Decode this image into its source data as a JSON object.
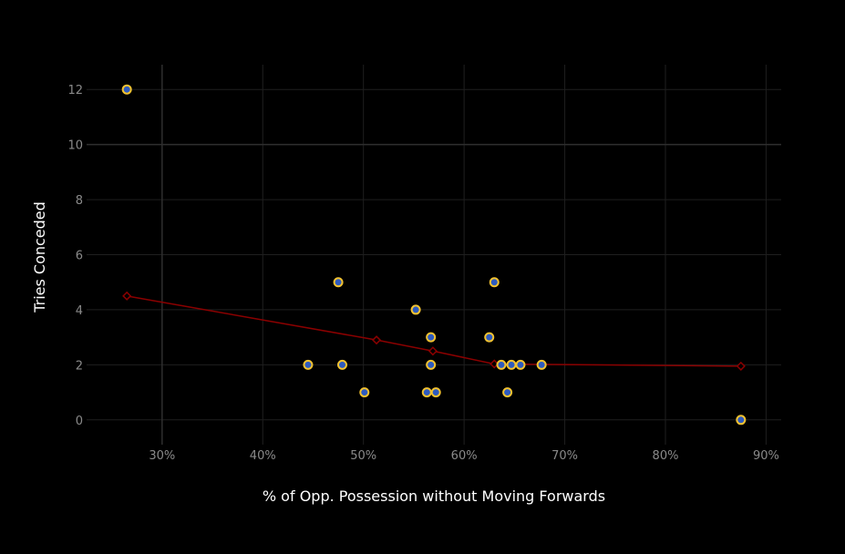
{
  "chart_data": {
    "type": "scatter",
    "title": "",
    "xlabel": "% of Opp. Possession without Moving Forwards",
    "ylabel": "Tries Conceded",
    "xlim": [
      0.225,
      0.915
    ],
    "ylim": [
      -0.9,
      12.9
    ],
    "x_ticks": [
      0.3,
      0.4,
      0.5,
      0.6,
      0.7,
      0.8,
      0.9
    ],
    "x_tick_labels": [
      "30%",
      "40%",
      "50%",
      "60%",
      "70%",
      "80%",
      "90%"
    ],
    "y_ticks": [
      0,
      2,
      4,
      6,
      8,
      10,
      12
    ],
    "y_tick_labels": [
      "0",
      "2",
      "4",
      "6",
      "8",
      "10",
      "12"
    ],
    "grid": true,
    "legend": "none",
    "colors": {
      "background": "#000000",
      "grid": "#1f1f1f",
      "zero_line": "#2e2e2e",
      "point_fill": "#2e5bbf",
      "point_stroke": "#f2c230",
      "trend": "#8b0000",
      "tick_text": "#8a8a8a",
      "axis_title": "#ffffff"
    },
    "series": [
      {
        "type": "scatter",
        "points": [
          {
            "x": 0.265,
            "y": 12
          },
          {
            "x": 0.445,
            "y": 2
          },
          {
            "x": 0.475,
            "y": 5
          },
          {
            "x": 0.479,
            "y": 2
          },
          {
            "x": 0.501,
            "y": 1
          },
          {
            "x": 0.552,
            "y": 4
          },
          {
            "x": 0.563,
            "y": 1
          },
          {
            "x": 0.567,
            "y": 3
          },
          {
            "x": 0.567,
            "y": 2
          },
          {
            "x": 0.572,
            "y": 1
          },
          {
            "x": 0.625,
            "y": 3
          },
          {
            "x": 0.63,
            "y": 5
          },
          {
            "x": 0.637,
            "y": 2
          },
          {
            "x": 0.643,
            "y": 1
          },
          {
            "x": 0.647,
            "y": 2
          },
          {
            "x": 0.656,
            "y": 2
          },
          {
            "x": 0.677,
            "y": 2
          },
          {
            "x": 0.875,
            "y": 0
          }
        ]
      },
      {
        "type": "line",
        "points": [
          {
            "x": 0.265,
            "y": 4.5
          },
          {
            "x": 0.513,
            "y": 2.9
          },
          {
            "x": 0.569,
            "y": 2.5
          },
          {
            "x": 0.63,
            "y": 2.03
          },
          {
            "x": 0.875,
            "y": 1.95
          }
        ]
      }
    ]
  }
}
